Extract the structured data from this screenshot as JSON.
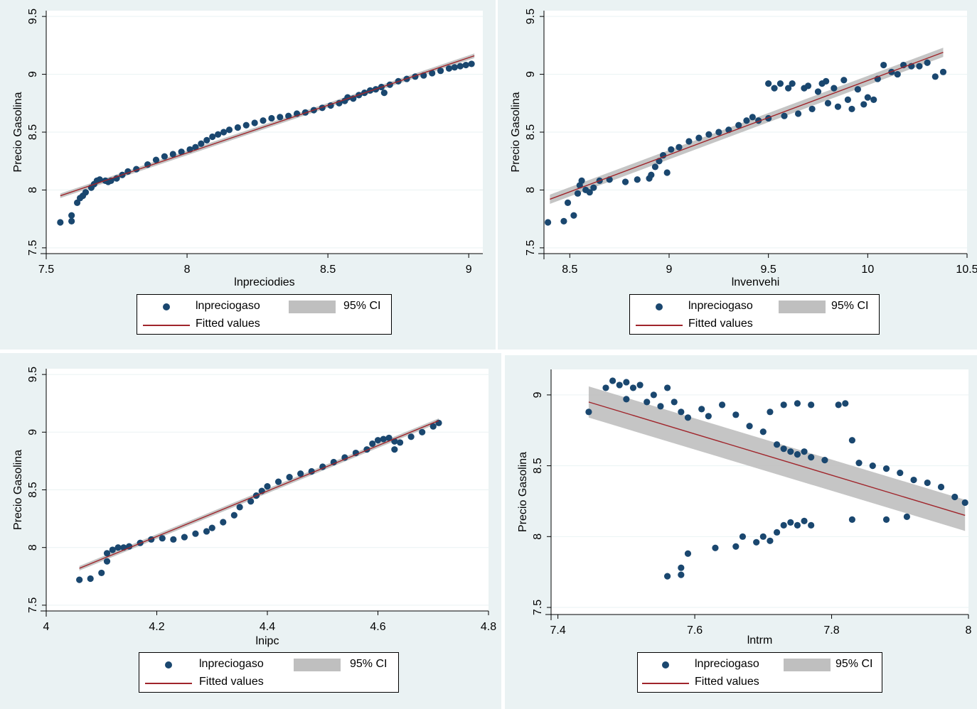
{
  "style": {
    "panel_bg": "#eaf2f3",
    "plot_bg": "#ffffff",
    "marker_color": "#1a476f",
    "fit_color": "#a0252b",
    "ci_color": "#bfbfbf",
    "grid_color": "#eaf2f3"
  },
  "legend": {
    "marker_label": "lnpreciogaso",
    "ci_label": "95% CI",
    "fit_label": "Fitted values"
  },
  "chart_data": [
    {
      "type": "scatter",
      "xlabel": "lnpreciodies",
      "ylabel": "Precio Gasolina",
      "xlim": [
        7.5,
        9.05
      ],
      "ylim": [
        7.45,
        9.55
      ],
      "xticks": [
        7.5,
        8,
        8.5,
        9
      ],
      "xtick_labels": [
        "7.5",
        "8",
        "8.5",
        "9"
      ],
      "yticks": [
        7.5,
        8,
        8.5,
        9,
        9.5
      ],
      "ytick_labels": [
        "7.5",
        "8",
        "8.5",
        "9",
        "9.5"
      ],
      "fit": {
        "x": [
          7.55,
          9.02
        ],
        "y": [
          7.95,
          9.16
        ]
      },
      "ci": {
        "x": [
          7.55,
          9.02
        ],
        "upper": [
          7.97,
          9.18
        ],
        "lower": [
          7.93,
          9.14
        ]
      },
      "points": [
        [
          7.55,
          7.72
        ],
        [
          7.59,
          7.73
        ],
        [
          7.59,
          7.78
        ],
        [
          7.61,
          7.89
        ],
        [
          7.62,
          7.93
        ],
        [
          7.63,
          7.95
        ],
        [
          7.64,
          7.98
        ],
        [
          7.66,
          8.02
        ],
        [
          7.67,
          8.05
        ],
        [
          7.68,
          8.08
        ],
        [
          7.69,
          8.09
        ],
        [
          7.71,
          8.08
        ],
        [
          7.72,
          8.07
        ],
        [
          7.73,
          8.08
        ],
        [
          7.75,
          8.1
        ],
        [
          7.77,
          8.13
        ],
        [
          7.79,
          8.16
        ],
        [
          7.82,
          8.18
        ],
        [
          7.86,
          8.22
        ],
        [
          7.89,
          8.26
        ],
        [
          7.92,
          8.29
        ],
        [
          7.95,
          8.31
        ],
        [
          7.98,
          8.33
        ],
        [
          8.01,
          8.35
        ],
        [
          8.03,
          8.37
        ],
        [
          8.05,
          8.4
        ],
        [
          8.07,
          8.43
        ],
        [
          8.09,
          8.46
        ],
        [
          8.11,
          8.48
        ],
        [
          8.13,
          8.5
        ],
        [
          8.15,
          8.52
        ],
        [
          8.18,
          8.54
        ],
        [
          8.21,
          8.56
        ],
        [
          8.24,
          8.58
        ],
        [
          8.27,
          8.6
        ],
        [
          8.3,
          8.62
        ],
        [
          8.33,
          8.63
        ],
        [
          8.36,
          8.64
        ],
        [
          8.39,
          8.66
        ],
        [
          8.42,
          8.67
        ],
        [
          8.45,
          8.69
        ],
        [
          8.48,
          8.71
        ],
        [
          8.51,
          8.73
        ],
        [
          8.54,
          8.75
        ],
        [
          8.56,
          8.77
        ],
        [
          8.57,
          8.8
        ],
        [
          8.59,
          8.79
        ],
        [
          8.61,
          8.82
        ],
        [
          8.63,
          8.84
        ],
        [
          8.65,
          8.86
        ],
        [
          8.67,
          8.87
        ],
        [
          8.69,
          8.89
        ],
        [
          8.7,
          8.84
        ],
        [
          8.72,
          8.91
        ],
        [
          8.75,
          8.94
        ],
        [
          8.78,
          8.96
        ],
        [
          8.81,
          8.98
        ],
        [
          8.84,
          8.99
        ],
        [
          8.87,
          9.01
        ],
        [
          8.9,
          9.03
        ],
        [
          8.93,
          9.05
        ],
        [
          8.95,
          9.06
        ],
        [
          8.97,
          9.07
        ],
        [
          8.99,
          9.08
        ],
        [
          9.01,
          9.09
        ]
      ]
    },
    {
      "type": "scatter",
      "xlabel": "lnvenvehi",
      "ylabel": "Precio Gasolina",
      "xlim": [
        8.37,
        10.5
      ],
      "ylim": [
        7.45,
        9.55
      ],
      "xticks": [
        8.5,
        9,
        9.5,
        10,
        10.5
      ],
      "xtick_labels": [
        "8.5",
        "9",
        "9.5",
        "10",
        "10.5"
      ],
      "yticks": [
        7.5,
        8,
        8.5,
        9,
        9.5
      ],
      "ytick_labels": [
        "7.5",
        "8",
        "8.5",
        "9",
        "9.5"
      ],
      "fit": {
        "x": [
          8.4,
          10.38
        ],
        "y": [
          7.92,
          9.19
        ]
      },
      "ci": {
        "x": [
          8.4,
          10.38
        ],
        "upper": [
          7.96,
          9.23
        ],
        "lower": [
          7.88,
          9.15
        ]
      },
      "points": [
        [
          8.39,
          7.72
        ],
        [
          8.47,
          7.73
        ],
        [
          8.49,
          7.89
        ],
        [
          8.52,
          7.78
        ],
        [
          8.54,
          7.97
        ],
        [
          8.55,
          8.04
        ],
        [
          8.56,
          8.08
        ],
        [
          8.58,
          8.0
        ],
        [
          8.6,
          7.98
        ],
        [
          8.62,
          8.02
        ],
        [
          8.65,
          8.08
        ],
        [
          8.7,
          8.09
        ],
        [
          8.78,
          8.07
        ],
        [
          8.84,
          8.09
        ],
        [
          8.9,
          8.1
        ],
        [
          8.91,
          8.13
        ],
        [
          8.93,
          8.2
        ],
        [
          8.95,
          8.25
        ],
        [
          8.97,
          8.3
        ],
        [
          8.99,
          8.15
        ],
        [
          9.01,
          8.35
        ],
        [
          9.05,
          8.37
        ],
        [
          9.1,
          8.42
        ],
        [
          9.15,
          8.45
        ],
        [
          9.2,
          8.48
        ],
        [
          9.25,
          8.5
        ],
        [
          9.3,
          8.52
        ],
        [
          9.35,
          8.56
        ],
        [
          9.39,
          8.6
        ],
        [
          9.42,
          8.63
        ],
        [
          9.45,
          8.6
        ],
        [
          9.5,
          8.62
        ],
        [
          9.5,
          8.92
        ],
        [
          9.53,
          8.88
        ],
        [
          9.56,
          8.92
        ],
        [
          9.58,
          8.64
        ],
        [
          9.6,
          8.88
        ],
        [
          9.62,
          8.92
        ],
        [
          9.65,
          8.66
        ],
        [
          9.68,
          8.88
        ],
        [
          9.7,
          8.9
        ],
        [
          9.72,
          8.7
        ],
        [
          9.75,
          8.85
        ],
        [
          9.77,
          8.92
        ],
        [
          9.79,
          8.94
        ],
        [
          9.8,
          8.75
        ],
        [
          9.83,
          8.88
        ],
        [
          9.85,
          8.72
        ],
        [
          9.88,
          8.95
        ],
        [
          9.9,
          8.78
        ],
        [
          9.92,
          8.7
        ],
        [
          9.95,
          8.87
        ],
        [
          9.98,
          8.74
        ],
        [
          10.0,
          8.8
        ],
        [
          10.03,
          8.78
        ],
        [
          10.05,
          8.96
        ],
        [
          10.08,
          9.08
        ],
        [
          10.12,
          9.02
        ],
        [
          10.15,
          9.0
        ],
        [
          10.18,
          9.08
        ],
        [
          10.22,
          9.07
        ],
        [
          10.26,
          9.07
        ],
        [
          10.3,
          9.1
        ],
        [
          10.34,
          8.98
        ],
        [
          10.38,
          9.02
        ]
      ]
    },
    {
      "type": "scatter",
      "xlabel": "lnipc",
      "ylabel": "Precio Gasolina",
      "xlim": [
        4.0,
        4.8
      ],
      "ylim": [
        7.45,
        9.55
      ],
      "xticks": [
        4,
        4.2,
        4.4,
        4.6,
        4.8
      ],
      "xtick_labels": [
        "4",
        "4.2",
        "4.4",
        "4.6",
        "4.8"
      ],
      "yticks": [
        7.5,
        8,
        8.5,
        9,
        9.5
      ],
      "ytick_labels": [
        "7.5",
        "8",
        "8.5",
        "9",
        "9.5"
      ],
      "fit": {
        "x": [
          4.06,
          4.71
        ],
        "y": [
          7.82,
          9.1
        ]
      },
      "ci": {
        "x": [
          4.06,
          4.71
        ],
        "upper": [
          7.84,
          9.12
        ],
        "lower": [
          7.8,
          9.08
        ]
      },
      "points": [
        [
          4.06,
          7.72
        ],
        [
          4.08,
          7.73
        ],
        [
          4.1,
          7.78
        ],
        [
          4.11,
          7.88
        ],
        [
          4.11,
          7.95
        ],
        [
          4.12,
          7.98
        ],
        [
          4.13,
          8.0
        ],
        [
          4.14,
          8.0
        ],
        [
          4.15,
          8.01
        ],
        [
          4.17,
          8.04
        ],
        [
          4.19,
          8.07
        ],
        [
          4.21,
          8.08
        ],
        [
          4.23,
          8.07
        ],
        [
          4.25,
          8.09
        ],
        [
          4.27,
          8.12
        ],
        [
          4.29,
          8.14
        ],
        [
          4.3,
          8.17
        ],
        [
          4.32,
          8.22
        ],
        [
          4.34,
          8.28
        ],
        [
          4.35,
          8.35
        ],
        [
          4.37,
          8.4
        ],
        [
          4.38,
          8.45
        ],
        [
          4.39,
          8.49
        ],
        [
          4.4,
          8.53
        ],
        [
          4.42,
          8.57
        ],
        [
          4.44,
          8.61
        ],
        [
          4.46,
          8.64
        ],
        [
          4.48,
          8.66
        ],
        [
          4.5,
          8.7
        ],
        [
          4.52,
          8.74
        ],
        [
          4.54,
          8.78
        ],
        [
          4.56,
          8.82
        ],
        [
          4.58,
          8.85
        ],
        [
          4.59,
          8.9
        ],
        [
          4.6,
          8.93
        ],
        [
          4.61,
          8.94
        ],
        [
          4.62,
          8.95
        ],
        [
          4.63,
          8.92
        ],
        [
          4.63,
          8.85
        ],
        [
          4.64,
          8.91
        ],
        [
          4.66,
          8.96
        ],
        [
          4.68,
          9.0
        ],
        [
          4.7,
          9.05
        ],
        [
          4.71,
          9.08
        ]
      ]
    },
    {
      "type": "scatter",
      "xlabel": "lntrm",
      "ylabel": "Precio Gasolina",
      "xlim": [
        7.39,
        8.0
      ],
      "ylim": [
        7.45,
        9.18
      ],
      "xticks": [
        7.4,
        7.6,
        7.8,
        8
      ],
      "xtick_labels": [
        "7.4",
        "7.6",
        "7.8",
        "8"
      ],
      "yticks": [
        7.5,
        8,
        8.5,
        9
      ],
      "ytick_labels": [
        "7.5",
        "8",
        "8.5",
        "9"
      ],
      "fit": {
        "x": [
          7.445,
          7.995
        ],
        "y": [
          8.95,
          8.15
        ]
      },
      "ci": {
        "x": [
          7.445,
          7.995
        ],
        "upper": [
          9.06,
          8.26
        ],
        "lower": [
          8.84,
          8.04
        ]
      },
      "points": [
        [
          7.445,
          8.88
        ],
        [
          7.47,
          9.05
        ],
        [
          7.48,
          9.1
        ],
        [
          7.49,
          9.07
        ],
        [
          7.5,
          9.09
        ],
        [
          7.5,
          8.97
        ],
        [
          7.51,
          9.05
        ],
        [
          7.52,
          9.07
        ],
        [
          7.53,
          8.95
        ],
        [
          7.54,
          9.0
        ],
        [
          7.55,
          8.92
        ],
        [
          7.56,
          9.05
        ],
        [
          7.57,
          8.95
        ],
        [
          7.58,
          8.88
        ],
        [
          7.59,
          8.84
        ],
        [
          7.61,
          8.9
        ],
        [
          7.62,
          8.85
        ],
        [
          7.64,
          8.93
        ],
        [
          7.66,
          8.86
        ],
        [
          7.68,
          8.78
        ],
        [
          7.7,
          8.74
        ],
        [
          7.71,
          8.88
        ],
        [
          7.72,
          8.65
        ],
        [
          7.73,
          8.62
        ],
        [
          7.74,
          8.6
        ],
        [
          7.75,
          8.58
        ],
        [
          7.76,
          8.6
        ],
        [
          7.77,
          8.56
        ],
        [
          7.79,
          8.54
        ],
        [
          7.81,
          8.93
        ],
        [
          7.83,
          8.68
        ],
        [
          7.84,
          8.52
        ],
        [
          7.86,
          8.5
        ],
        [
          7.88,
          8.48
        ],
        [
          7.9,
          8.45
        ],
        [
          7.92,
          8.4
        ],
        [
          7.94,
          8.38
        ],
        [
          7.96,
          8.35
        ],
        [
          7.98,
          8.28
        ],
        [
          7.995,
          8.24
        ],
        [
          7.56,
          7.72
        ],
        [
          7.58,
          7.73
        ],
        [
          7.58,
          7.78
        ],
        [
          7.59,
          7.88
        ],
        [
          7.63,
          7.92
        ],
        [
          7.66,
          7.93
        ],
        [
          7.67,
          8.0
        ],
        [
          7.69,
          7.96
        ],
        [
          7.7,
          8.0
        ],
        [
          7.71,
          7.97
        ],
        [
          7.72,
          8.03
        ],
        [
          7.73,
          8.08
        ],
        [
          7.74,
          8.1
        ],
        [
          7.75,
          8.08
        ],
        [
          7.76,
          8.11
        ],
        [
          7.77,
          8.08
        ],
        [
          7.83,
          8.12
        ],
        [
          7.88,
          8.12
        ],
        [
          7.91,
          8.14
        ],
        [
          7.73,
          8.93
        ],
        [
          7.75,
          8.94
        ],
        [
          7.77,
          8.93
        ],
        [
          7.82,
          8.94
        ]
      ]
    }
  ]
}
